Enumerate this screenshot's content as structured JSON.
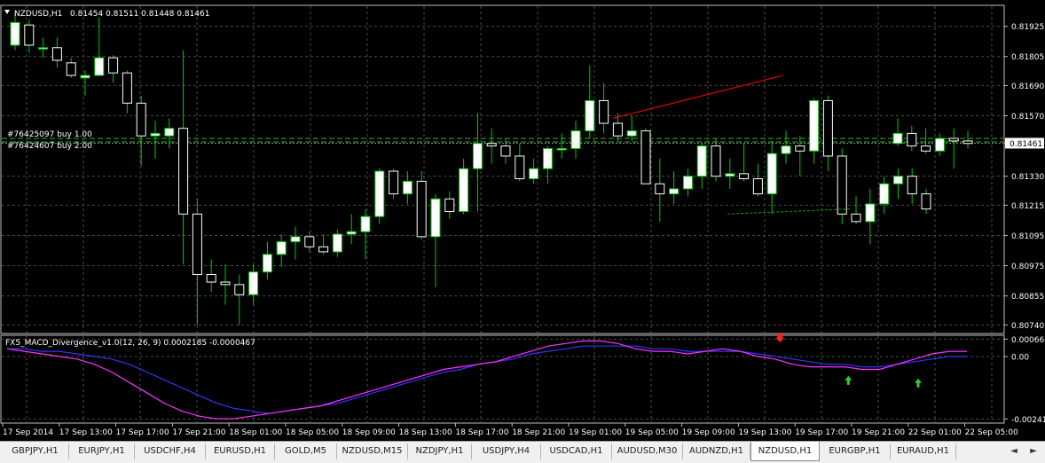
{
  "main": {
    "header": {
      "toggle_icon": "triangle-down-icon",
      "symbol": "NZDUSD,H1",
      "ohlc": "0.81454 0.81511 0.81448 0.81461"
    },
    "price_axis": [
      "0.81925",
      "0.81805",
      "0.81690",
      "0.81570",
      "0.81461",
      "0.81330",
      "0.81215",
      "0.81095",
      "0.80975",
      "0.80855",
      "0.80740"
    ],
    "current_price": "0.81461",
    "orders": [
      {
        "label": "#76425097 buy 1.00",
        "price": 0.8148
      },
      {
        "label": "#76424607 buy 2.00",
        "price": 0.81466
      }
    ],
    "colors": {
      "bull": "#ffffff",
      "bear": "#ffffff",
      "wick": "#00cc00",
      "grid": "#4a4a4a",
      "trend": "#ff0000",
      "support": "#00aa00",
      "macd": "#ff33ff",
      "signal": "#3333ff",
      "up_arrow": "#33cc33",
      "down_arrow": "#ff2222"
    },
    "trendline": [
      [
        45,
        0.8156
      ],
      [
        57,
        0.8173
      ]
    ],
    "support_line": [
      [
        54,
        0.8118
      ],
      [
        64,
        0.812
      ]
    ],
    "candles": [
      [
        0.8185,
        0.8198,
        0.8183,
        0.8194
      ],
      [
        0.8193,
        0.8195,
        0.8182,
        0.8185
      ],
      [
        0.8184,
        0.8188,
        0.818,
        0.8184
      ],
      [
        0.8184,
        0.8188,
        0.8176,
        0.8179
      ],
      [
        0.8178,
        0.818,
        0.8172,
        0.8173
      ],
      [
        0.8172,
        0.8175,
        0.8165,
        0.8173
      ],
      [
        0.8173,
        0.8196,
        0.8173,
        0.818
      ],
      [
        0.818,
        0.8181,
        0.817,
        0.8174
      ],
      [
        0.8174,
        0.8175,
        0.8158,
        0.8162
      ],
      [
        0.8162,
        0.8165,
        0.8137,
        0.8149
      ],
      [
        0.8149,
        0.8155,
        0.814,
        0.815
      ],
      [
        0.8149,
        0.8156,
        0.8144,
        0.8152
      ],
      [
        0.8152,
        0.8183,
        0.8098,
        0.8118
      ],
      [
        0.8118,
        0.8124,
        0.8074,
        0.8094
      ],
      [
        0.8094,
        0.81,
        0.8087,
        0.8091
      ],
      [
        0.8091,
        0.8098,
        0.8082,
        0.809
      ],
      [
        0.809,
        0.8094,
        0.8074,
        0.8086
      ],
      [
        0.8086,
        0.8098,
        0.8082,
        0.8095
      ],
      [
        0.8095,
        0.8107,
        0.8092,
        0.8102
      ],
      [
        0.8102,
        0.811,
        0.8097,
        0.8107
      ],
      [
        0.8107,
        0.8113,
        0.81,
        0.8109
      ],
      [
        0.8109,
        0.8111,
        0.8103,
        0.8105
      ],
      [
        0.8105,
        0.811,
        0.8102,
        0.8103
      ],
      [
        0.8103,
        0.8112,
        0.8101,
        0.811
      ],
      [
        0.811,
        0.8118,
        0.8106,
        0.8111
      ],
      [
        0.8111,
        0.812,
        0.81,
        0.8117
      ],
      [
        0.8117,
        0.8136,
        0.8114,
        0.8135
      ],
      [
        0.8135,
        0.8136,
        0.8124,
        0.8126
      ],
      [
        0.8126,
        0.8135,
        0.8122,
        0.8131
      ],
      [
        0.8131,
        0.8135,
        0.8108,
        0.8109
      ],
      [
        0.8109,
        0.8126,
        0.8089,
        0.8124
      ],
      [
        0.8124,
        0.8127,
        0.8116,
        0.8119
      ],
      [
        0.8119,
        0.814,
        0.8118,
        0.8136
      ],
      [
        0.8136,
        0.8158,
        0.8119,
        0.8146
      ],
      [
        0.8146,
        0.8152,
        0.8138,
        0.8145
      ],
      [
        0.8145,
        0.8148,
        0.8138,
        0.8141
      ],
      [
        0.8141,
        0.8146,
        0.8131,
        0.8132
      ],
      [
        0.8132,
        0.814,
        0.813,
        0.8136
      ],
      [
        0.8136,
        0.8145,
        0.813,
        0.8144
      ],
      [
        0.8144,
        0.815,
        0.814,
        0.8144
      ],
      [
        0.8144,
        0.8155,
        0.814,
        0.8151
      ],
      [
        0.8151,
        0.8177,
        0.8148,
        0.8163
      ],
      [
        0.8163,
        0.817,
        0.815,
        0.8154
      ],
      [
        0.8154,
        0.8158,
        0.8147,
        0.8149
      ],
      [
        0.8149,
        0.8157,
        0.8147,
        0.8151
      ],
      [
        0.8151,
        0.8152,
        0.813,
        0.813
      ],
      [
        0.813,
        0.814,
        0.8115,
        0.8126
      ],
      [
        0.8126,
        0.8135,
        0.8122,
        0.8128
      ],
      [
        0.8128,
        0.8136,
        0.8125,
        0.8133
      ],
      [
        0.8133,
        0.8146,
        0.8128,
        0.8145
      ],
      [
        0.8145,
        0.8148,
        0.8131,
        0.8133
      ],
      [
        0.8133,
        0.814,
        0.8128,
        0.8134
      ],
      [
        0.8134,
        0.8146,
        0.8131,
        0.8132
      ],
      [
        0.8132,
        0.8138,
        0.8125,
        0.8126
      ],
      [
        0.8126,
        0.8147,
        0.8118,
        0.8142
      ],
      [
        0.8142,
        0.8151,
        0.8138,
        0.8145
      ],
      [
        0.8145,
        0.8149,
        0.8133,
        0.8143
      ],
      [
        0.8143,
        0.8164,
        0.8138,
        0.8163
      ],
      [
        0.8163,
        0.8165,
        0.8135,
        0.8141
      ],
      [
        0.8141,
        0.8144,
        0.8114,
        0.8118
      ],
      [
        0.8118,
        0.8125,
        0.8114,
        0.8115
      ],
      [
        0.8115,
        0.8128,
        0.8106,
        0.8122
      ],
      [
        0.8122,
        0.8133,
        0.8118,
        0.813
      ],
      [
        0.813,
        0.8136,
        0.8124,
        0.8133
      ],
      [
        0.8133,
        0.8136,
        0.8122,
        0.8126
      ],
      [
        0.8126,
        0.8128,
        0.8118,
        0.812
      ]
    ],
    "candles2": [
      [
        0.8146,
        0.8156,
        0.8145,
        0.815
      ],
      [
        0.815,
        0.8153,
        0.8143,
        0.8145
      ],
      [
        0.8145,
        0.8152,
        0.8142,
        0.8143
      ],
      [
        0.8143,
        0.815,
        0.8141,
        0.8148
      ],
      [
        0.8148,
        0.8152,
        0.8136,
        0.8147
      ],
      [
        0.8147,
        0.8151,
        0.8144,
        0.8146
      ]
    ]
  },
  "indicator": {
    "title": "FX5_MACD_Divergence_v1.0(12, 26, 9) 0.0002185 -0.0000467",
    "axis": [
      "0.000668",
      "0.00",
      "-0.002410"
    ],
    "macd": [
      0.0003,
      0.0002,
      0.0001,
      0.0,
      -0.0001,
      -0.0003,
      -0.0006,
      -0.001,
      -0.0014,
      -0.0018,
      -0.0021,
      -0.0023,
      -0.0024,
      -0.0024,
      -0.0023,
      -0.0022,
      -0.0021,
      -0.002,
      -0.0019,
      -0.0017,
      -0.0015,
      -0.0013,
      -0.0011,
      -0.0009,
      -0.0007,
      -0.0005,
      -0.0004,
      -0.0003,
      -0.0002,
      0.0,
      0.0002,
      0.0004,
      0.0005,
      0.0006,
      0.0006,
      0.0005,
      0.0003,
      0.0002,
      0.0002,
      0.0001,
      0.0002,
      0.0003,
      0.0002,
      0.0,
      -0.0001,
      -0.0003,
      -0.0004,
      -0.0004,
      -0.0004,
      -0.0005,
      -0.0005,
      -0.0003,
      -0.0001,
      0.0001,
      0.0002,
      0.0002
    ],
    "signal": [
      0.0003,
      0.0003,
      0.0002,
      0.0002,
      0.0001,
      0.0,
      -0.0001,
      -0.0003,
      -0.0006,
      -0.0009,
      -0.0012,
      -0.0015,
      -0.0018,
      -0.002,
      -0.0021,
      -0.0022,
      -0.0021,
      -0.002,
      -0.0019,
      -0.0018,
      -0.0016,
      -0.0014,
      -0.0012,
      -0.001,
      -0.0008,
      -0.0006,
      -0.0005,
      -0.0003,
      -0.0002,
      -0.0001,
      0.0001,
      0.0002,
      0.0003,
      0.0004,
      0.0004,
      0.0004,
      0.0004,
      0.0003,
      0.0003,
      0.0002,
      0.0002,
      0.0002,
      0.0002,
      0.0001,
      0.0,
      -0.0001,
      -0.0002,
      -0.0003,
      -0.0003,
      -0.0004,
      -0.0004,
      -0.0003,
      -0.0002,
      -0.0001,
      0.0,
      0.0
    ],
    "down_arrows": [
      [
        45,
        0.00055
      ]
    ],
    "up_arrows": [
      [
        48,
        -0.00075
      ],
      [
        52,
        -0.00085
      ]
    ]
  },
  "time_axis": [
    "17 Sep 2014",
    "17 Sep 13:00",
    "17 Sep 17:00",
    "17 Sep 21:00",
    "18 Sep 01:00",
    "18 Sep 05:00",
    "18 Sep 09:00",
    "18 Sep 13:00",
    "18 Sep 17:00",
    "18 Sep 21:00",
    "19 Sep 01:00",
    "19 Sep 05:00",
    "19 Sep 09:00",
    "19 Sep 13:00",
    "19 Sep 17:00",
    "19 Sep 21:00",
    "22 Sep 01:00",
    "22 Sep 05:00"
  ],
  "tabs": [
    "GBPJPY,H1",
    "EURJPY,H1",
    "USDCHF,H4",
    "EURUSD,H1",
    "GOLD,M5",
    "NZDUSD,M15",
    "NZDJPY,H1",
    "USDJPY,H4",
    "USDCAD,H1",
    "AUDUSD,M30",
    "AUDNZD,H1",
    "NZDUSD,H1",
    "EURGBP,H1",
    "EURAUD,H1"
  ],
  "active_tab": "NZDUSD,H1",
  "tab_arrows": {
    "left": "◄",
    "right": "►"
  }
}
